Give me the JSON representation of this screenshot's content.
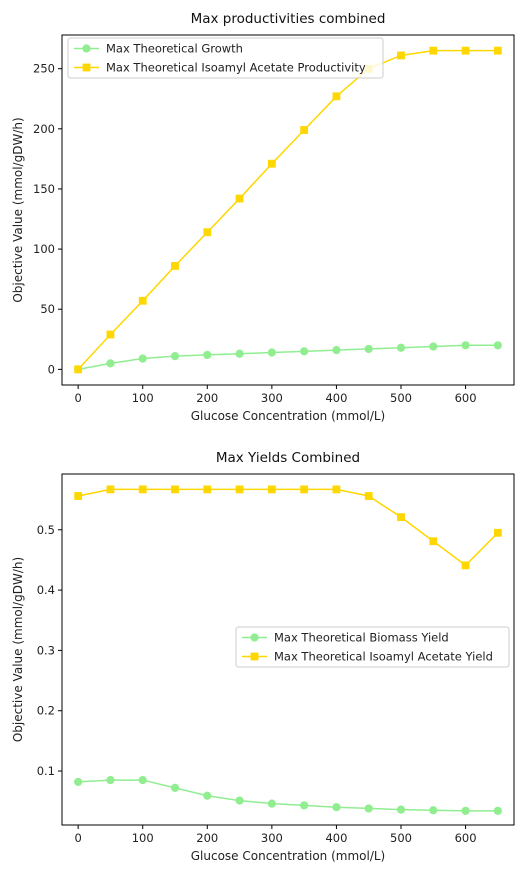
{
  "chart_data": [
    {
      "type": "line",
      "title": "Max productivities combined",
      "xlabel": "Glucose Concentration (mmol/L)",
      "ylabel": "Objective Value (mmol/gDW/h)",
      "x": [
        0,
        50,
        100,
        150,
        200,
        250,
        300,
        350,
        400,
        450,
        500,
        550,
        600,
        650
      ],
      "xlim": [
        -25,
        675
      ],
      "ylim": [
        -13,
        278
      ],
      "xticks": [
        0,
        100,
        200,
        300,
        400,
        500,
        600
      ],
      "yticks": [
        0,
        50,
        100,
        150,
        200,
        250
      ],
      "grid": false,
      "legend_position": "top-left",
      "series": [
        {
          "name": "Max Theoretical Growth",
          "color": "#90ee90",
          "marker": "circle",
          "values": [
            0,
            5,
            9,
            11,
            12,
            13,
            14,
            15,
            16,
            17,
            18,
            19,
            20,
            20
          ]
        },
        {
          "name": "Max Theoretical Isoamyl Acetate Productivity",
          "color": "#ffd700",
          "marker": "square",
          "values": [
            0,
            29,
            57,
            86,
            114,
            142,
            171,
            199,
            227,
            250,
            261,
            265,
            265,
            265
          ]
        }
      ]
    },
    {
      "type": "line",
      "title": "Max Yields Combined",
      "xlabel": "Glucose Concentration (mmol/L)",
      "ylabel": "Objective Value (mmol/gDW/h)",
      "x": [
        0,
        50,
        100,
        150,
        200,
        250,
        300,
        350,
        400,
        450,
        500,
        550,
        600,
        650
      ],
      "xlim": [
        -25,
        675
      ],
      "ylim": [
        0.0105,
        0.5925
      ],
      "xticks": [
        0,
        100,
        200,
        300,
        400,
        500,
        600
      ],
      "yticks": [
        0.1,
        0.2,
        0.3,
        0.4,
        0.5
      ],
      "grid": false,
      "legend_position": "center-right",
      "series": [
        {
          "name": "Max Theoretical Biomass Yield",
          "color": "#90ee90",
          "marker": "circle",
          "values": [
            0.082,
            0.085,
            0.085,
            0.072,
            0.059,
            0.051,
            0.046,
            0.043,
            0.04,
            0.038,
            0.036,
            0.035,
            0.034,
            0.034
          ]
        },
        {
          "name": "Max Theoretical Isoamyl Acetate Yield",
          "color": "#ffd700",
          "marker": "square",
          "values": [
            0.556,
            0.567,
            0.567,
            0.567,
            0.567,
            0.567,
            0.567,
            0.567,
            0.567,
            0.556,
            0.521,
            0.481,
            0.441,
            0.495
          ]
        }
      ]
    }
  ]
}
